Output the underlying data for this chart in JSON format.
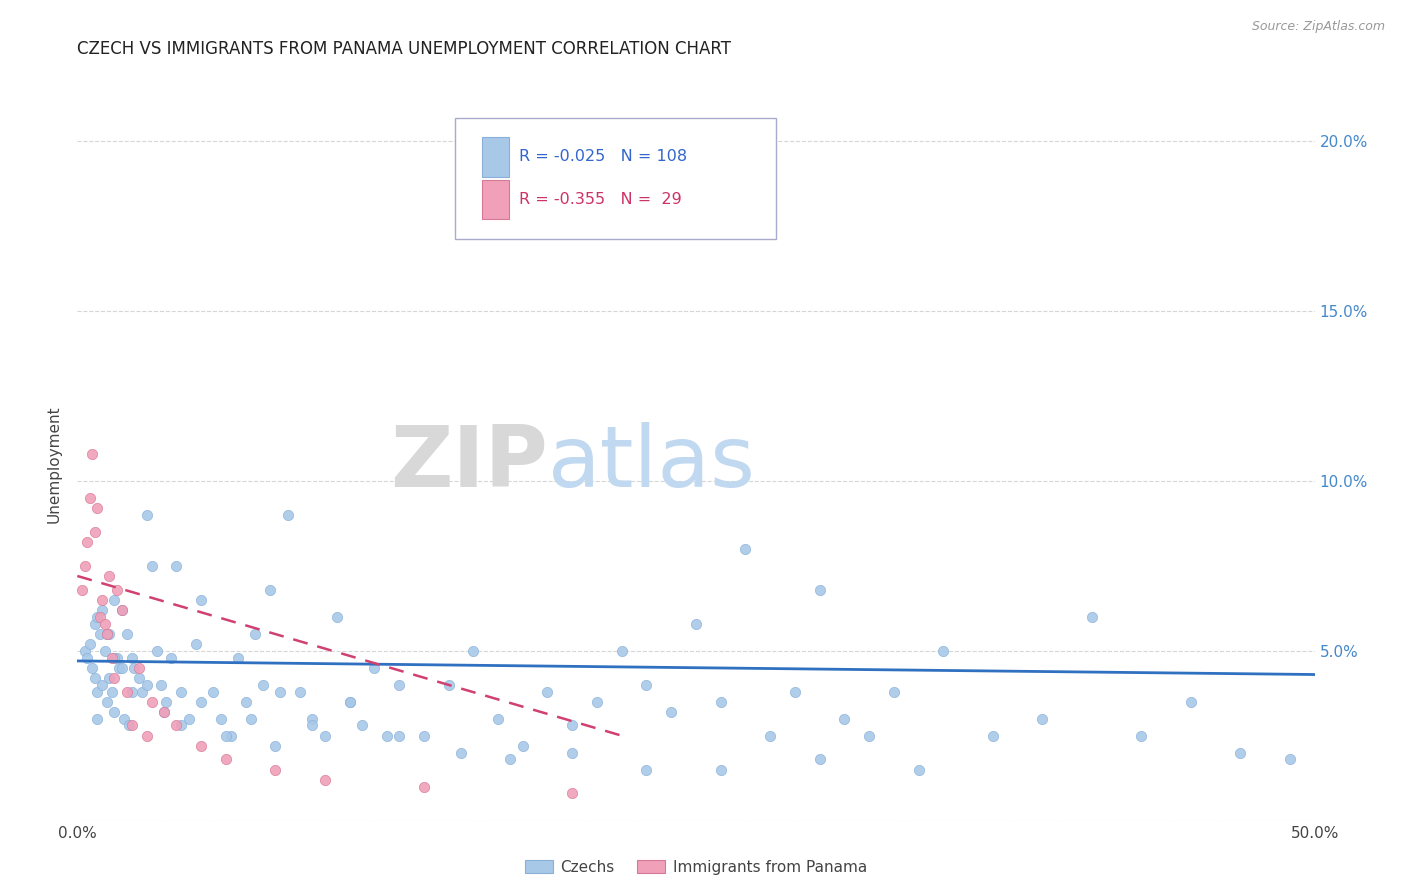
{
  "title": "CZECH VS IMMIGRANTS FROM PANAMA UNEMPLOYMENT CORRELATION CHART",
  "source_text": "Source: ZipAtlas.com",
  "ylabel": "Unemployment",
  "xlim": [
    0.0,
    0.5
  ],
  "ylim": [
    0.0,
    0.21
  ],
  "xtick_labels": [
    "0.0%",
    "",
    "",
    "",
    "",
    "50.0%"
  ],
  "xtick_vals": [
    0.0,
    0.1,
    0.2,
    0.3,
    0.4,
    0.5
  ],
  "ytick_vals_left": [
    0.0,
    0.05,
    0.1,
    0.15,
    0.2
  ],
  "ytick_labels_left": [
    "",
    "",
    "",
    "",
    ""
  ],
  "ytick_vals_right": [
    0.05,
    0.1,
    0.15,
    0.2
  ],
  "ytick_labels_right": [
    "5.0%",
    "10.0%",
    "15.0%",
    "20.0%"
  ],
  "czech_color": "#a8c8e8",
  "panama_color": "#f0a0b8",
  "czech_trend_color": "#3070c0",
  "panama_trend_color": "#d04070",
  "czech_label": "Czechs",
  "panama_label": "Immigrants from Panama",
  "legend_czech_R": "R = -0.025",
  "legend_czech_N": "N = 108",
  "legend_panama_R": "R = -0.355",
  "legend_panama_N": "N =  29",
  "watermark_zip": "ZIP",
  "watermark_atlas": "atlas",
  "grid_color": "#cccccc",
  "czech_x": [
    0.003,
    0.004,
    0.005,
    0.006,
    0.007,
    0.007,
    0.008,
    0.008,
    0.009,
    0.01,
    0.01,
    0.011,
    0.012,
    0.013,
    0.013,
    0.014,
    0.015,
    0.015,
    0.016,
    0.017,
    0.018,
    0.019,
    0.02,
    0.021,
    0.022,
    0.023,
    0.025,
    0.026,
    0.028,
    0.03,
    0.032,
    0.034,
    0.036,
    0.038,
    0.04,
    0.042,
    0.045,
    0.048,
    0.05,
    0.055,
    0.058,
    0.062,
    0.065,
    0.068,
    0.072,
    0.075,
    0.078,
    0.082,
    0.085,
    0.09,
    0.095,
    0.1,
    0.105,
    0.11,
    0.115,
    0.12,
    0.125,
    0.13,
    0.14,
    0.15,
    0.16,
    0.17,
    0.18,
    0.19,
    0.2,
    0.21,
    0.22,
    0.23,
    0.24,
    0.25,
    0.26,
    0.27,
    0.28,
    0.29,
    0.3,
    0.31,
    0.32,
    0.33,
    0.35,
    0.37,
    0.39,
    0.41,
    0.43,
    0.45,
    0.47,
    0.49,
    0.008,
    0.012,
    0.015,
    0.018,
    0.022,
    0.028,
    0.035,
    0.042,
    0.05,
    0.06,
    0.07,
    0.08,
    0.095,
    0.11,
    0.13,
    0.155,
    0.175,
    0.2,
    0.23,
    0.26,
    0.3,
    0.34
  ],
  "czech_y": [
    0.05,
    0.048,
    0.052,
    0.045,
    0.058,
    0.042,
    0.06,
    0.038,
    0.055,
    0.062,
    0.04,
    0.05,
    0.035,
    0.055,
    0.042,
    0.038,
    0.065,
    0.032,
    0.048,
    0.045,
    0.062,
    0.03,
    0.055,
    0.028,
    0.048,
    0.045,
    0.042,
    0.038,
    0.09,
    0.075,
    0.05,
    0.04,
    0.035,
    0.048,
    0.075,
    0.038,
    0.03,
    0.052,
    0.065,
    0.038,
    0.03,
    0.025,
    0.048,
    0.035,
    0.055,
    0.04,
    0.068,
    0.038,
    0.09,
    0.038,
    0.03,
    0.025,
    0.06,
    0.035,
    0.028,
    0.045,
    0.025,
    0.04,
    0.025,
    0.04,
    0.05,
    0.03,
    0.022,
    0.038,
    0.028,
    0.035,
    0.05,
    0.04,
    0.032,
    0.058,
    0.035,
    0.08,
    0.025,
    0.038,
    0.068,
    0.03,
    0.025,
    0.038,
    0.05,
    0.025,
    0.03,
    0.06,
    0.025,
    0.035,
    0.02,
    0.018,
    0.03,
    0.055,
    0.048,
    0.045,
    0.038,
    0.04,
    0.032,
    0.028,
    0.035,
    0.025,
    0.03,
    0.022,
    0.028,
    0.035,
    0.025,
    0.02,
    0.018,
    0.02,
    0.015,
    0.015,
    0.018,
    0.015
  ],
  "panama_x": [
    0.002,
    0.003,
    0.004,
    0.005,
    0.006,
    0.007,
    0.008,
    0.009,
    0.01,
    0.011,
    0.012,
    0.013,
    0.014,
    0.015,
    0.016,
    0.018,
    0.02,
    0.022,
    0.025,
    0.028,
    0.03,
    0.035,
    0.04,
    0.05,
    0.06,
    0.08,
    0.1,
    0.14,
    0.2
  ],
  "panama_y": [
    0.068,
    0.075,
    0.082,
    0.095,
    0.108,
    0.085,
    0.092,
    0.06,
    0.065,
    0.058,
    0.055,
    0.072,
    0.048,
    0.042,
    0.068,
    0.062,
    0.038,
    0.028,
    0.045,
    0.025,
    0.035,
    0.032,
    0.028,
    0.022,
    0.018,
    0.015,
    0.012,
    0.01,
    0.008
  ],
  "czech_trend_x0": 0.0,
  "czech_trend_x1": 0.5,
  "czech_trend_y0": 0.047,
  "czech_trend_y1": 0.043,
  "panama_trend_x0": 0.0,
  "panama_trend_x1": 0.22,
  "panama_trend_y0": 0.072,
  "panama_trend_y1": 0.025
}
